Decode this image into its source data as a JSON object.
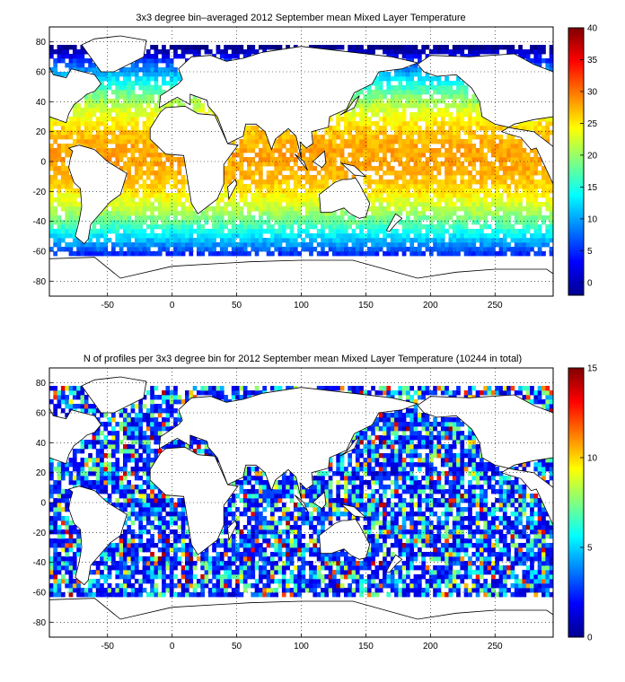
{
  "chart_data": [
    {
      "type": "heatmap",
      "title": "3x3 degree bin–averaged 2012 September mean Mixed Layer Temperature",
      "x_ticks": [
        "-50",
        "0",
        "50",
        "100",
        "150",
        "200",
        "250"
      ],
      "y_ticks": [
        "80",
        "60",
        "40",
        "20",
        "0",
        "-20",
        "-40",
        "-60",
        "-80"
      ],
      "xlim": [
        -95,
        295
      ],
      "ylim": [
        -90,
        90
      ],
      "grid": true,
      "colormap": "jet",
      "colorbar": {
        "min": -2,
        "max": 40,
        "ticks": [
          "40",
          "35",
          "30",
          "25",
          "20",
          "15",
          "10",
          "5",
          "0"
        ]
      },
      "bin_size_deg": 3,
      "representative_values": [
        {
          "lat_band": "60N",
          "value": 10
        },
        {
          "lat_band": "40N",
          "value": 20
        },
        {
          "lat_band": "20N",
          "value": 28
        },
        {
          "lat_band": "0",
          "value": 28
        },
        {
          "lat_band": "20S",
          "value": 23
        },
        {
          "lat_band": "40S",
          "value": 12
        },
        {
          "lat_band": "60S",
          "value": 1
        }
      ]
    },
    {
      "type": "heatmap",
      "title": "N of profiles per 3x3 degree bin for 2012 September mean Mixed Layer Temperature  (10244 in total)",
      "x_ticks": [
        "-50",
        "0",
        "50",
        "100",
        "150",
        "200",
        "250"
      ],
      "y_ticks": [
        "80",
        "60",
        "40",
        "20",
        "0",
        "-20",
        "-40",
        "-60",
        "-80"
      ],
      "xlim": [
        -95,
        295
      ],
      "ylim": [
        -90,
        90
      ],
      "grid": true,
      "colormap": "jet",
      "colorbar": {
        "min": 0,
        "max": 15,
        "ticks": [
          "15",
          "10",
          "5",
          "0"
        ]
      },
      "bin_size_deg": 3,
      "total_profiles": 10244
    }
  ],
  "colors": {
    "land_outline": "#000000",
    "background": "#ffffff",
    "grid": "#000000"
  }
}
